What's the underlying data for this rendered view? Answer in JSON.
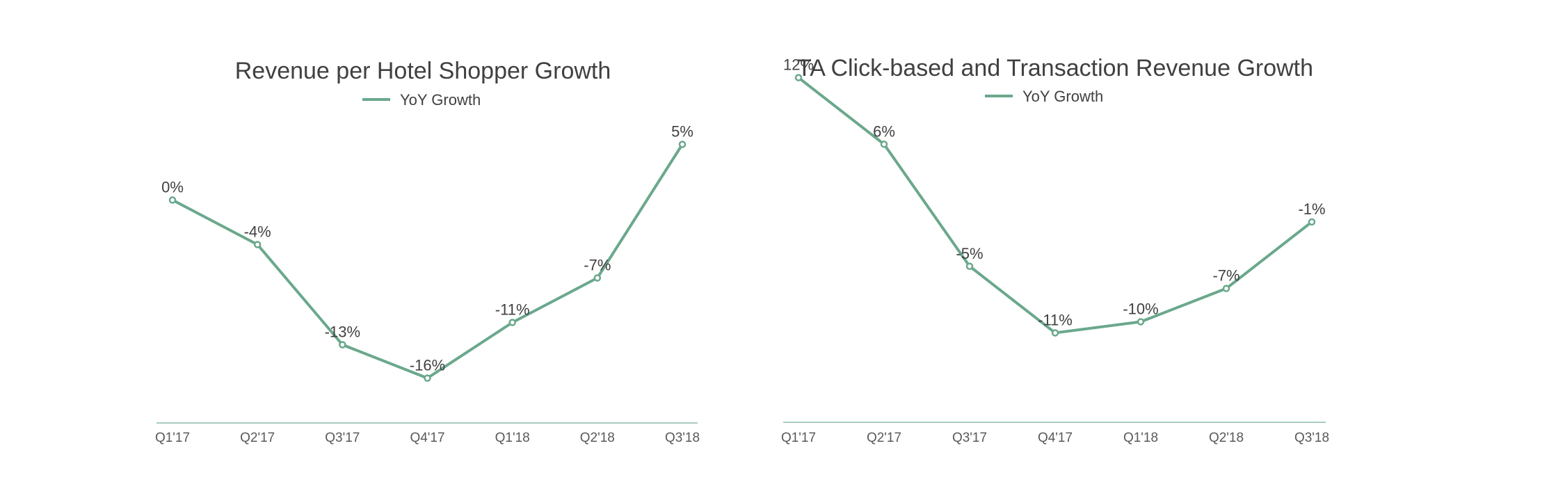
{
  "chart_data": [
    {
      "type": "line",
      "title": "Revenue per Hotel Shopper Growth",
      "xlabel": "",
      "ylabel": "",
      "categories": [
        "Q1'17",
        "Q2'17",
        "Q3'17",
        "Q4'17",
        "Q1'18",
        "Q2'18",
        "Q3'18"
      ],
      "series": [
        {
          "name": "YoY Growth",
          "values": [
            0,
            -4,
            -13,
            -16,
            -11,
            -7,
            5
          ],
          "labels": [
            "0%",
            "-4%",
            "-13%",
            "-16%",
            "-11%",
            "-7%",
            "5%"
          ]
        }
      ],
      "ylim": [
        -20,
        10
      ],
      "grid": false,
      "legend": "top-center",
      "color": "#6aa88c"
    },
    {
      "type": "line",
      "title": "TA Click-based and Transaction Revenue Growth",
      "xlabel": "",
      "ylabel": "",
      "categories": [
        "Q1'17",
        "Q2'17",
        "Q3'17",
        "Q4'17",
        "Q1'18",
        "Q2'18",
        "Q3'18"
      ],
      "series": [
        {
          "name": "YoY Growth",
          "values": [
            12,
            6,
            -5,
            -11,
            -10,
            -7,
            -1
          ],
          "labels": [
            "12%",
            "6%",
            "-5%",
            "-11%",
            "-10%",
            "-7%",
            "-1%"
          ]
        }
      ],
      "ylim": [
        -15,
        15
      ],
      "grid": false,
      "legend": "top-center",
      "color": "#6aa88c"
    }
  ]
}
